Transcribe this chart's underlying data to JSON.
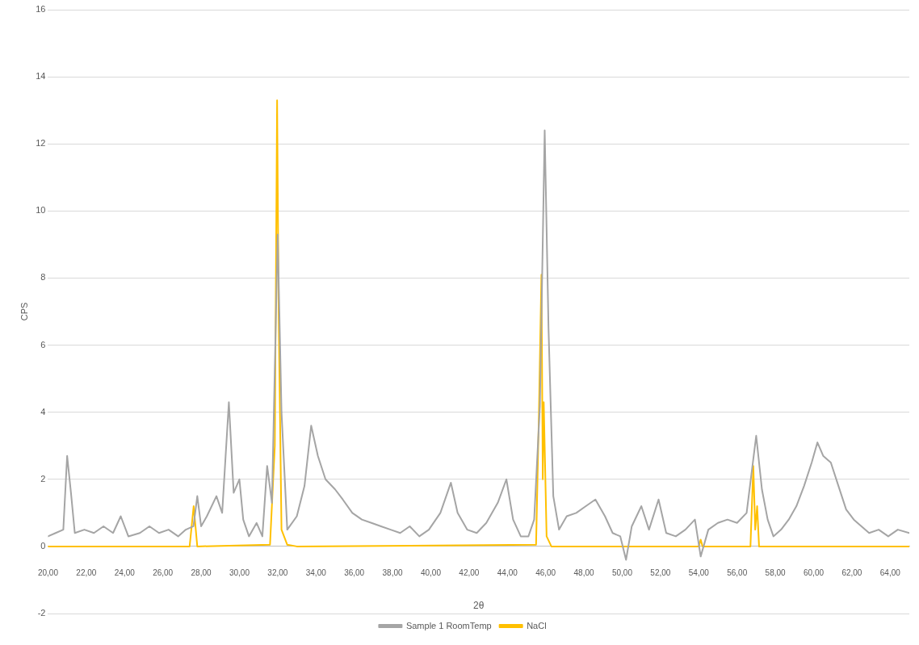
{
  "chart_data": {
    "type": "line",
    "xlabel": "2θ",
    "ylabel": "CPS",
    "xlim": [
      20,
      65
    ],
    "xticks": [
      {
        "value": 20,
        "label": "20,00"
      },
      {
        "value": 22,
        "label": "22,00"
      },
      {
        "value": 24,
        "label": "24,00"
      },
      {
        "value": 26,
        "label": "26,00"
      },
      {
        "value": 28,
        "label": "28,00"
      },
      {
        "value": 30,
        "label": "30,00"
      },
      {
        "value": 32,
        "label": "32,00"
      },
      {
        "value": 34,
        "label": "34,00"
      },
      {
        "value": 36,
        "label": "36,00"
      },
      {
        "value": 38,
        "label": "38,00"
      },
      {
        "value": 40,
        "label": "40,00"
      },
      {
        "value": 42,
        "label": "42,00"
      },
      {
        "value": 44,
        "label": "44,00"
      },
      {
        "value": 46,
        "label": "46,00"
      },
      {
        "value": 48,
        "label": "48,00"
      },
      {
        "value": 50,
        "label": "50,00"
      },
      {
        "value": 52,
        "label": "52,00"
      },
      {
        "value": 54,
        "label": "54,00"
      },
      {
        "value": 56,
        "label": "56,00"
      },
      {
        "value": 58,
        "label": "58,00"
      },
      {
        "value": 60,
        "label": "60,00"
      },
      {
        "value": 62,
        "label": "62,00"
      },
      {
        "value": 64,
        "label": "64,00"
      }
    ],
    "ylim": [
      -2,
      16
    ],
    "yticks": [
      -2,
      0,
      2,
      4,
      6,
      8,
      10,
      12,
      14,
      16
    ],
    "grid": "y",
    "legend": "bottom",
    "marker": "none",
    "line_style": "solid",
    "series": [
      {
        "name": "Sample 1 RoomTemp",
        "color": "#a5a5a5",
        "x": [
          20.0,
          20.4,
          20.8,
          21.0,
          21.2,
          21.4,
          21.9,
          22.4,
          22.9,
          23.4,
          23.8,
          24.2,
          24.8,
          25.3,
          25.8,
          26.3,
          26.8,
          27.2,
          27.6,
          27.8,
          28.0,
          28.3,
          28.8,
          29.1,
          29.45,
          29.7,
          30.0,
          30.2,
          30.5,
          30.9,
          31.2,
          31.45,
          31.7,
          32.0,
          32.2,
          32.5,
          33.0,
          33.4,
          33.75,
          34.1,
          34.5,
          35.0,
          35.4,
          35.9,
          36.4,
          36.9,
          37.4,
          37.9,
          38.4,
          38.9,
          39.4,
          39.9,
          40.5,
          41.05,
          41.4,
          41.9,
          42.4,
          42.9,
          43.5,
          43.95,
          44.3,
          44.7,
          45.1,
          45.4,
          45.7,
          45.95,
          46.15,
          46.4,
          46.7,
          47.1,
          47.6,
          48.1,
          48.6,
          49.1,
          49.5,
          49.9,
          50.2,
          50.5,
          51.0,
          51.4,
          51.9,
          52.3,
          52.8,
          53.3,
          53.8,
          54.1,
          54.5,
          55.0,
          55.5,
          56.0,
          56.5,
          57.0,
          57.3,
          57.6,
          57.9,
          58.3,
          58.7,
          59.1,
          59.5,
          59.9,
          60.2,
          60.5,
          60.9,
          61.3,
          61.7,
          62.1,
          62.5,
          62.9,
          63.4,
          63.9,
          64.4,
          65.0
        ],
        "values": [
          0.3,
          0.4,
          0.5,
          2.7,
          1.6,
          0.4,
          0.5,
          0.4,
          0.6,
          0.4,
          0.9,
          0.3,
          0.4,
          0.6,
          0.4,
          0.5,
          0.3,
          0.5,
          0.6,
          1.5,
          0.6,
          0.9,
          1.5,
          1.0,
          4.3,
          1.6,
          2.0,
          0.8,
          0.3,
          0.7,
          0.3,
          2.4,
          1.3,
          9.3,
          4.0,
          0.5,
          0.9,
          1.8,
          3.6,
          2.7,
          2.0,
          1.7,
          1.4,
          1.0,
          0.8,
          0.7,
          0.6,
          0.5,
          0.4,
          0.6,
          0.3,
          0.5,
          1.0,
          1.9,
          1.0,
          0.5,
          0.4,
          0.7,
          1.3,
          2.0,
          0.8,
          0.3,
          0.3,
          0.8,
          4.2,
          12.4,
          6.5,
          1.5,
          0.5,
          0.9,
          1.0,
          1.2,
          1.4,
          0.9,
          0.4,
          0.3,
          -0.4,
          0.6,
          1.2,
          0.5,
          1.4,
          0.4,
          0.3,
          0.5,
          0.8,
          -0.3,
          0.5,
          0.7,
          0.8,
          0.7,
          1.0,
          3.3,
          1.7,
          0.8,
          0.3,
          0.5,
          0.8,
          1.2,
          1.8,
          2.5,
          3.1,
          2.7,
          2.5,
          1.8,
          1.1,
          0.8,
          0.6,
          0.4,
          0.5,
          0.3,
          0.5,
          0.4
        ]
      },
      {
        "name": "NaCl",
        "color": "#ffc000",
        "x": [
          20,
          27.4,
          27.61,
          27.8,
          31.6,
          31.85,
          31.97,
          32.05,
          32.2,
          32.5,
          33,
          45.5,
          45.65,
          45.78,
          45.85,
          45.9,
          46.05,
          46.3,
          54.0,
          54.1,
          54.2,
          56.7,
          56.85,
          56.95,
          57.05,
          57.15,
          65
        ],
        "values": [
          0,
          0,
          1.2,
          0,
          0.05,
          3,
          13.3,
          7,
          0.5,
          0.05,
          0,
          0.05,
          4,
          8.1,
          2,
          4.3,
          0.3,
          0,
          0,
          0.2,
          0,
          0,
          2.4,
          0.5,
          1.2,
          0,
          0
        ]
      }
    ]
  }
}
